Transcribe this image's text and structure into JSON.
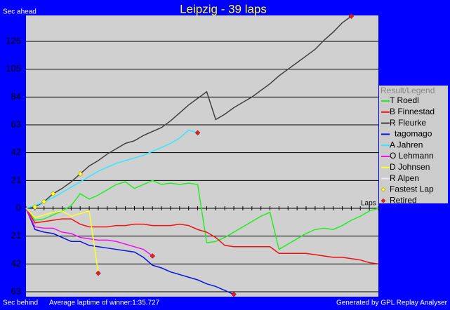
{
  "chart_data": {
    "type": "line",
    "title": "Leipzig - 39 laps",
    "y_label_top": "Sec ahead",
    "y_label_bottom": "Sec behind",
    "x_label": "Laps",
    "footer_left": "Average laptime of winner:1:35.727",
    "footer_right": "Generated by GPL Replay Analyser",
    "legend_title": "Result/Legend",
    "x": [
      0,
      1,
      2,
      3,
      4,
      5,
      6,
      7,
      8,
      9,
      10,
      11,
      12,
      13,
      14,
      15,
      16,
      17,
      18,
      19,
      20,
      21,
      22,
      23,
      24,
      25,
      26,
      27,
      28,
      29,
      30,
      31,
      32,
      33,
      34,
      35,
      36,
      37,
      38,
      39
    ],
    "xlim": [
      0,
      39
    ],
    "ylim": [
      -66.7,
      145.6
    ],
    "yticks": [
      {
        "value": -63,
        "label": "63"
      },
      {
        "value": -42,
        "label": "42"
      },
      {
        "value": -21,
        "label": "21"
      },
      0,
      21,
      42,
      63,
      84,
      105,
      126
    ],
    "grid": true,
    "series": [
      {
        "name": "T Roedl",
        "color": "#22ee22",
        "retired": false,
        "values": [
          0,
          -9,
          -8,
          -5,
          -2,
          2,
          11,
          7,
          10,
          14,
          18,
          20,
          15,
          18,
          21,
          18,
          19,
          18,
          19,
          18,
          -26,
          -25,
          -22,
          -18,
          -14,
          -10,
          -6,
          -3,
          -31,
          -27,
          -23,
          -19,
          -16,
          -15,
          -16,
          -13,
          -9,
          -6,
          -2,
          0
        ]
      },
      {
        "name": "B Finnestad",
        "color": "#ee1111",
        "retired": false,
        "values": [
          0,
          -11,
          -10,
          -9,
          -8,
          -8,
          -12,
          -14,
          -14,
          -14,
          -13,
          -13,
          -12,
          -12,
          -13,
          -13,
          -13,
          -12,
          -13,
          -16,
          -18,
          -22,
          -28,
          -29,
          -29,
          -29,
          -29,
          -29,
          -34,
          -34,
          -34,
          -34,
          -35,
          -36,
          -37,
          -37,
          -38,
          -39,
          -41,
          -42
        ]
      },
      {
        "name": "R Fleurke",
        "color": "#404040",
        "retired": true,
        "values": [
          0,
          1,
          5,
          11,
          15,
          20,
          26,
          32,
          36,
          41,
          45,
          49,
          51,
          55,
          58,
          61,
          66,
          72,
          78,
          83,
          88,
          67,
          71,
          76,
          80,
          84,
          89,
          94,
          100,
          105,
          110,
          115,
          120,
          127,
          133,
          140,
          145,
          null,
          null,
          null
        ]
      },
      {
        "name": "tagomago",
        "color": "#0a14dd",
        "retired": true,
        "values": [
          0,
          -16,
          -18,
          -19,
          -22,
          -25,
          -25,
          -28,
          -29,
          -30,
          -31,
          -32,
          -33,
          -37,
          -43,
          -45,
          -48,
          -50,
          -52,
          -54,
          -57,
          -59,
          -62,
          -65,
          null,
          null,
          null,
          null,
          null,
          null,
          null,
          null,
          null,
          null,
          null,
          null,
          null,
          null,
          null,
          null
        ]
      },
      {
        "name": "A Jahren",
        "color": "#33e8ff",
        "retired": true,
        "values": [
          0,
          2,
          5,
          8,
          12,
          16,
          20,
          24,
          28,
          31,
          34,
          36,
          38,
          40,
          43,
          46,
          49,
          53,
          59,
          57,
          null,
          null,
          null,
          null,
          null,
          null,
          null,
          null,
          null,
          null,
          null,
          null,
          null,
          null,
          null,
          null,
          null,
          null,
          null,
          null
        ]
      },
      {
        "name": "O Lehmann",
        "color": "#ee11ee",
        "retired": true,
        "values": [
          0,
          -14,
          -15,
          -15,
          -18,
          -19,
          -22,
          -23,
          -24,
          -24,
          -25,
          -27,
          -29,
          -31,
          -36,
          null,
          null,
          null,
          null,
          null,
          null,
          null,
          null,
          null,
          null,
          null,
          null,
          null,
          null,
          null,
          null,
          null,
          null,
          null,
          null,
          null,
          null,
          null,
          null,
          null
        ]
      },
      {
        "name": "D Johnsen",
        "color": "#ffff22",
        "retired": true,
        "values": [
          0,
          -7,
          -5,
          -3,
          -2,
          -6,
          -4,
          -2,
          -49,
          null,
          null,
          null,
          null,
          null,
          null,
          null,
          null,
          null,
          null,
          null,
          null,
          null,
          null,
          null,
          null,
          null,
          null,
          null,
          null,
          null,
          null,
          null,
          null,
          null,
          null,
          null,
          null,
          null,
          null,
          null
        ]
      },
      {
        "name": "R Alpen",
        "color": "#e8e8ff",
        "retired": false,
        "values": [
          null,
          null,
          null,
          null,
          null,
          null,
          null,
          null,
          null,
          null,
          null,
          null,
          null,
          null,
          null,
          null,
          null,
          null,
          null,
          null,
          null,
          null,
          null,
          null,
          null,
          null,
          null,
          null,
          null,
          null,
          null,
          null,
          null,
          null,
          null,
          null,
          null,
          null,
          null,
          null
        ]
      }
    ],
    "fastest_lap": {
      "name": "Fastest Lap",
      "color": "#ffff22",
      "x": [
        1,
        2,
        3,
        6
      ],
      "values": [
        1,
        5,
        11,
        26
      ]
    },
    "retired_marker": {
      "name": "Retired",
      "color": "#dd2222"
    }
  }
}
